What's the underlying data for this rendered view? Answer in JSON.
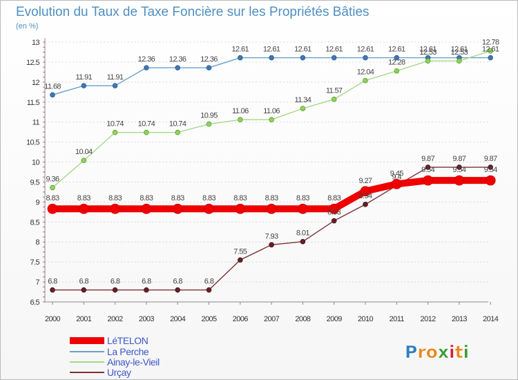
{
  "chart_data": {
    "type": "line",
    "title": "Evolution du Taux de Taxe Foncière sur les Propriétés Bâties",
    "ylabel": "(en %)",
    "xlabel": "",
    "ylim": [
      6.5,
      13
    ],
    "yticks": [
      "6.5",
      "7",
      "7.5",
      "8",
      "8.5",
      "9",
      "9.5",
      "10",
      "10.5",
      "11",
      "11.5",
      "12",
      "12.5",
      "13"
    ],
    "categories": [
      "2000",
      "2001",
      "2002",
      "2003",
      "2004",
      "2005",
      "2006",
      "2007",
      "2008",
      "2009",
      "2010",
      "2011",
      "2012",
      "2013",
      "2014"
    ],
    "series": [
      {
        "name": "LéTELON",
        "color": "#ee0000",
        "values": [
          8.83,
          8.83,
          8.83,
          8.83,
          8.83,
          8.83,
          8.83,
          8.83,
          8.83,
          8.83,
          9.27,
          9.45,
          9.54,
          9.54,
          9.54
        ],
        "labels": [
          "8.83",
          "8.83",
          "8.83",
          "8.83",
          "8.83",
          "8.83",
          "8.83",
          "8.83",
          "8.83",
          "8.83",
          "9.27",
          "9.45",
          "9.54",
          "9.54",
          "9.54"
        ]
      },
      {
        "name": "La Perche",
        "color": "#6a9fcb",
        "values": [
          11.68,
          11.91,
          11.91,
          12.36,
          12.36,
          12.36,
          12.61,
          12.61,
          12.61,
          12.61,
          12.61,
          12.61,
          12.61,
          12.61,
          12.61
        ],
        "labels": [
          "11.68",
          "11.91",
          "11.91",
          "12.36",
          "12.36",
          "12.36",
          "12.61",
          "12.61",
          "12.61",
          "12.61",
          "12.61",
          "12.61",
          "12.61",
          "12.61",
          "12.61"
        ]
      },
      {
        "name": "Ainay-le-Vieil",
        "color": "#a6d98a",
        "values": [
          9.36,
          10.04,
          10.74,
          10.74,
          10.74,
          10.95,
          11.06,
          11.06,
          11.34,
          11.57,
          12.04,
          12.28,
          12.53,
          12.53,
          12.78
        ],
        "labels": [
          "9.36",
          "10.04",
          "10.74",
          "10.74",
          "10.74",
          "10.95",
          "11.06",
          "11.06",
          "11.34",
          "11.57",
          "12.04",
          "12.28",
          "12.53",
          "12.53",
          "12.78"
        ]
      },
      {
        "name": "Urçay",
        "color": "#7a3038",
        "values": [
          6.8,
          6.8,
          6.8,
          6.8,
          6.8,
          6.8,
          7.55,
          7.93,
          8.01,
          8.53,
          8.94,
          9.41,
          9.87,
          9.87,
          9.87
        ],
        "labels": [
          "6.8",
          "6.8",
          "6.8",
          "6.8",
          "6.8",
          "6.8",
          "7.55",
          "7.93",
          "8.01",
          "8.53",
          "8.94",
          "9.4",
          "9.87",
          "9.87",
          "9.87"
        ]
      }
    ]
  },
  "logo": {
    "letters": [
      "P",
      "r",
      "o",
      "x",
      "i",
      "t",
      "i"
    ],
    "colors": [
      "#2f7fc1",
      "#e8881c",
      "#e8881c",
      "#3d9b35",
      "#d21f3c",
      "#e8881c",
      "#3d9b35"
    ]
  }
}
